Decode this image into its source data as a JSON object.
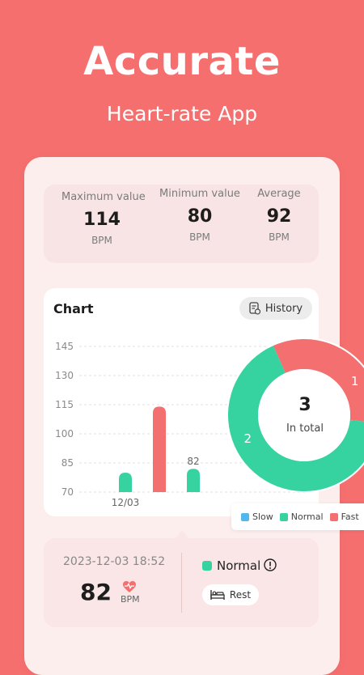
{
  "hero": {
    "title": "Accurate",
    "subtitle": "Heart-rate App"
  },
  "stats": [
    {
      "label": "Maximum value",
      "value": "114",
      "unit": "BPM"
    },
    {
      "label": "Minimum value",
      "value": "80",
      "unit": "BPM"
    },
    {
      "label": "Average",
      "value": "92",
      "unit": "BPM"
    }
  ],
  "chart": {
    "title": "Chart",
    "history_label": "History"
  },
  "chart_data": {
    "type": "bar",
    "y_ticks": [
      145,
      130,
      115,
      100,
      85,
      70
    ],
    "ylim": [
      70,
      145
    ],
    "x_tick_label": "12/03",
    "bars": [
      {
        "value": 80,
        "status": "normal",
        "label": ""
      },
      {
        "value": 114,
        "status": "fast",
        "label": ""
      },
      {
        "value": 82,
        "status": "normal",
        "label": "82"
      }
    ],
    "donut": {
      "total": "3",
      "total_label": "In total",
      "segments": [
        {
          "name": "Fast",
          "value": 1,
          "label": "1"
        },
        {
          "name": "Normal",
          "value": 2,
          "label": "2"
        }
      ]
    },
    "legend": [
      "Slow",
      "Normal",
      "Fast"
    ]
  },
  "colors": {
    "slow": "#52b6ef",
    "normal": "#36d3a0",
    "fast": "#f46f6f",
    "brand": "#f66f6f"
  },
  "record": {
    "datetime": "2023-12-03 18:52",
    "value": "82",
    "unit": "BPM",
    "status": "Normal",
    "activity": "Rest"
  }
}
